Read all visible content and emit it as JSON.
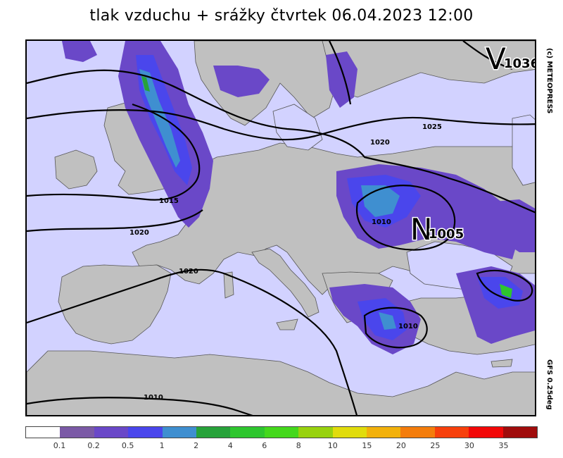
{
  "title": "tlak vzduchu + srážky čtvrtek 06.04.2023 12:00",
  "copyright": "(c) METEOPRESS",
  "model": "GFS 0.25deg",
  "pressure_centers": [
    {
      "letter": "V",
      "value": "1036"
    },
    {
      "letter": "N",
      "value": "1005"
    }
  ],
  "isobar_labels": [
    "1025",
    "1020",
    "1015",
    "1020",
    "1020",
    "1010",
    "1010",
    "1010"
  ],
  "legend": {
    "colors": [
      "#ffffff",
      "#7b5aa6",
      "#6a48c8",
      "#4a46ec",
      "#3f8fd0",
      "#27a23a",
      "#2ec62e",
      "#44d81c",
      "#98d20e",
      "#e1dc0c",
      "#f2b10c",
      "#f47d0c",
      "#f7400c",
      "#f20808",
      "#a00c0c"
    ],
    "labels": [
      "0.1",
      "0.2",
      "0.5",
      "1",
      "2",
      "4",
      "6",
      "8",
      "10",
      "15",
      "20",
      "25",
      "30",
      "35"
    ]
  }
}
